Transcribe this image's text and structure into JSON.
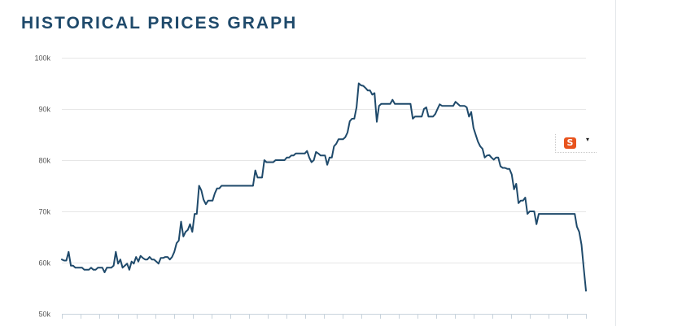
{
  "page": {
    "title": "HISTORICAL PRICES GRAPH"
  },
  "widget": {
    "logo_glyph": "S",
    "menu_glyph": "▾",
    "logo_color": "#e8541e"
  },
  "chart_data": {
    "type": "line",
    "title": "",
    "xlabel": "",
    "ylabel": "",
    "ylim": [
      50000,
      100000
    ],
    "yticks": [
      50000,
      60000,
      70000,
      80000,
      90000,
      100000
    ],
    "ytick_labels": [
      "50k",
      "60k",
      "70k",
      "80k",
      "90k",
      "100k"
    ],
    "grid": true,
    "line_color": "#1f4a6b",
    "series": [
      {
        "values": [
          60600,
          60400,
          60400,
          62100,
          59400,
          59400,
          59000,
          59000,
          59000,
          59000,
          58600,
          58600,
          58600,
          59000,
          58600,
          58600,
          59000,
          59000,
          59000,
          58100,
          59000,
          59000,
          59000,
          59400,
          62100,
          59800,
          60600,
          59000,
          59400,
          59800,
          58600,
          60200,
          59800,
          61100,
          60200,
          61300,
          60900,
          60600,
          60600,
          61100,
          60600,
          60600,
          60200,
          59800,
          60900,
          60900,
          61100,
          61100,
          60600,
          61100,
          62100,
          63800,
          64300,
          68000,
          65100,
          66000,
          66400,
          67500,
          66000,
          69500,
          69500,
          75000,
          74100,
          72300,
          71400,
          72100,
          72100,
          72100,
          73500,
          74500,
          74500,
          75000,
          75000,
          75000,
          75000,
          75000,
          75000,
          75000,
          75000,
          75000,
          75000,
          75000,
          75000,
          75000,
          75000,
          75000,
          78000,
          76600,
          76600,
          76600,
          80000,
          79600,
          79600,
          79600,
          79600,
          80000,
          80000,
          80000,
          80000,
          80000,
          80500,
          80500,
          80900,
          80900,
          81300,
          81300,
          81300,
          81300,
          81300,
          81800,
          80500,
          79600,
          80000,
          81600,
          81300,
          80900,
          80900,
          80900,
          79100,
          80500,
          80500,
          82700,
          83200,
          84100,
          84100,
          84100,
          84500,
          85400,
          87600,
          88100,
          88100,
          90300,
          95000,
          94600,
          94500,
          94100,
          93600,
          93600,
          92800,
          93100,
          87500,
          90600,
          91000,
          91000,
          91000,
          91000,
          91000,
          91800,
          91000,
          91000,
          91000,
          91000,
          91000,
          91000,
          91000,
          91000,
          88100,
          88500,
          88500,
          88500,
          88500,
          90000,
          90300,
          88500,
          88500,
          88500,
          89000,
          90000,
          90900,
          90600,
          90600,
          90600,
          90600,
          90600,
          90600,
          91400,
          91000,
          90600,
          90600,
          90600,
          90300,
          88500,
          89400,
          86300,
          84900,
          83600,
          82700,
          82200,
          80500,
          80900,
          81000,
          80500,
          80100,
          80500,
          80500,
          78800,
          78500,
          78500,
          78300,
          78300,
          77200,
          74300,
          75400,
          71600,
          72100,
          72100,
          72700,
          69500,
          70000,
          70000,
          70000,
          67500,
          69500,
          69500,
          69500,
          69500,
          69500,
          69500,
          69500,
          69500,
          69500,
          69500,
          69500,
          69500,
          69500,
          69500,
          69500,
          69500,
          69500,
          67000,
          66000,
          63500,
          59000,
          54500
        ]
      }
    ]
  }
}
